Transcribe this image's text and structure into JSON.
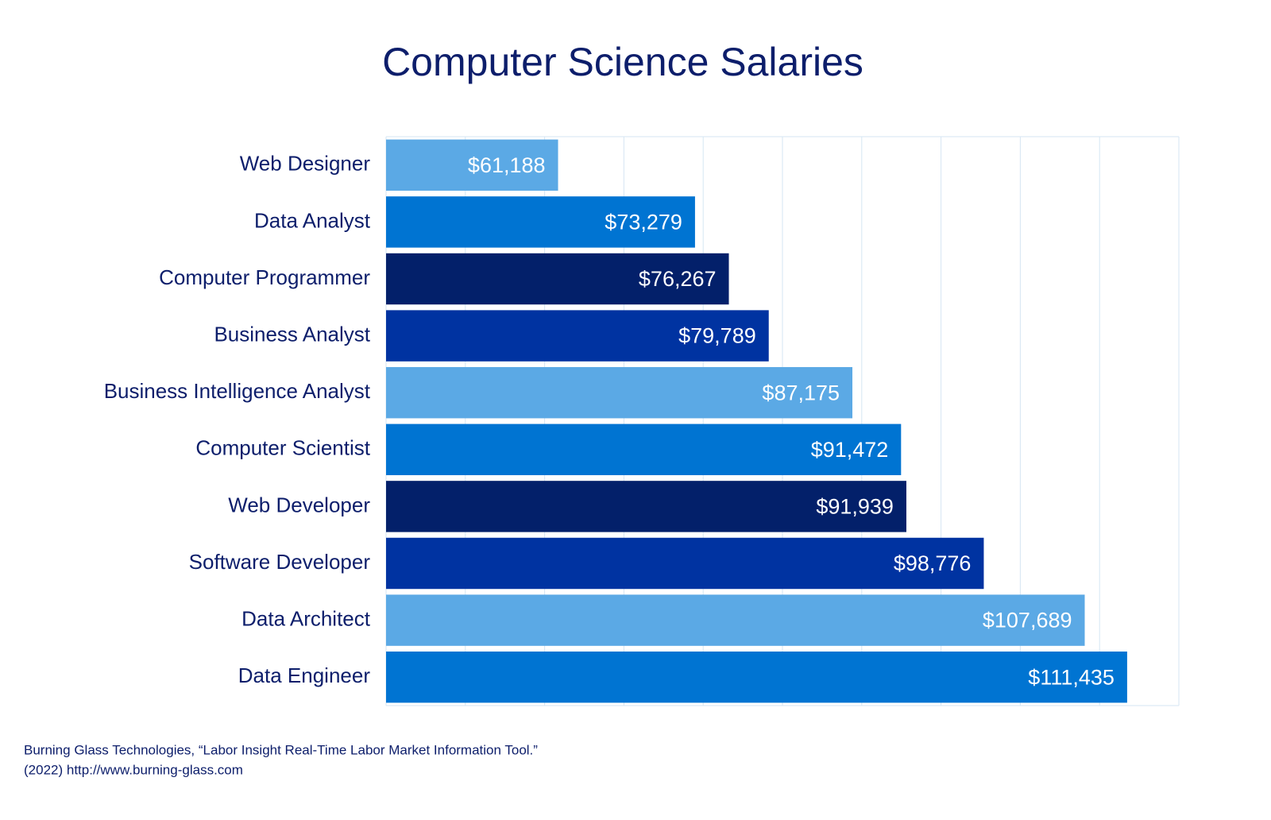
{
  "chart_data": {
    "type": "barh",
    "title": "Computer Science Salaries",
    "categories": [
      "Web Designer",
      "Data Analyst",
      "Computer Programmer",
      "Business Analyst",
      "Business Intelligence Analyst",
      "Computer Scientist",
      "Web Developer",
      "Software Developer",
      "Data Architect",
      "Data Engineer"
    ],
    "values": [
      61188,
      73279,
      76267,
      79789,
      87175,
      91472,
      91939,
      98776,
      107689,
      111435
    ],
    "value_labels": [
      "$61,188",
      "$73,279",
      "$76,267",
      "$79,789",
      "$87,175",
      "$91,472",
      "$91,939",
      "$98,776",
      "$107,689",
      "$111,435"
    ],
    "colors": [
      "#5ba9e5",
      "#0074d2",
      "#03206a",
      "#0033a1",
      "#5ba9e5",
      "#0074d2",
      "#03206a",
      "#0033a1",
      "#5ba9e5",
      "#0074d2"
    ],
    "xlim": [
      46000,
      116000
    ],
    "xticks": [
      46000,
      53000,
      60000,
      67000,
      74000,
      81000,
      88000,
      95000,
      102000,
      109000,
      116000
    ],
    "grid": true,
    "source": [
      "Burning Glass Technologies, “Labor Insight Real-Time Labor Market Information Tool.”",
      "(2022) http://www.burning-glass.com"
    ]
  }
}
